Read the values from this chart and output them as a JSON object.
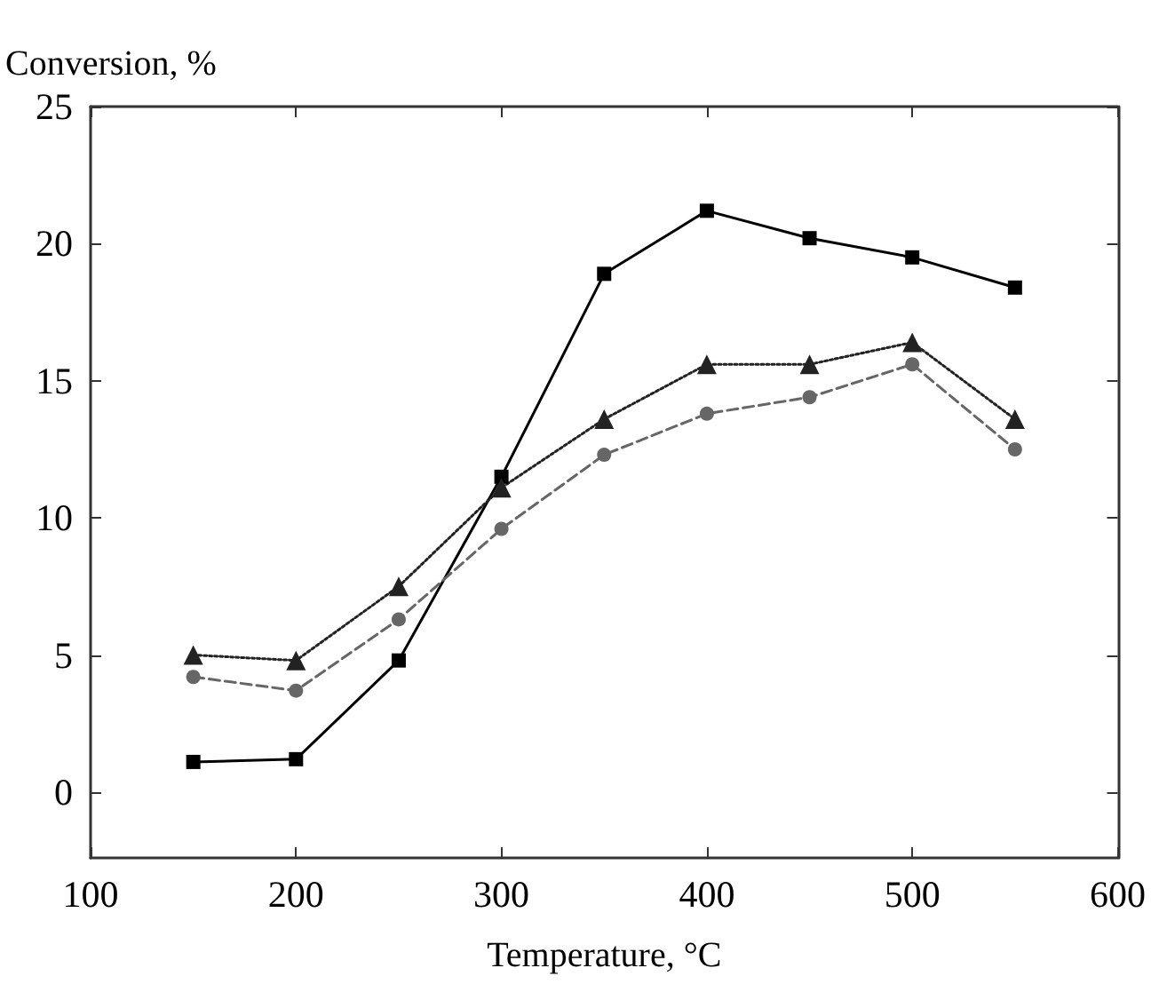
{
  "chart_data": {
    "type": "line",
    "xlabel": "Temperature, °C",
    "ylabel": "Conversion, %",
    "x": [
      150,
      200,
      250,
      300,
      350,
      400,
      450,
      500,
      550
    ],
    "series": [
      {
        "color": "#000000",
        "marker": "square",
        "line_style": "solid",
        "values": [
          1.1,
          1.2,
          4.8,
          11.5,
          18.9,
          21.2,
          20.2,
          19.5,
          18.4
        ]
      },
      {
        "color": "#222222",
        "marker": "triangle",
        "line_style": "dotted",
        "values": [
          5.0,
          4.8,
          7.5,
          11.1,
          13.6,
          15.6,
          15.6,
          16.4,
          13.6
        ]
      },
      {
        "color": "#666666",
        "marker": "circle",
        "line_style": "dashed",
        "values": [
          4.2,
          3.7,
          6.3,
          9.6,
          12.3,
          13.8,
          14.4,
          15.6,
          12.5
        ]
      }
    ],
    "xlim": [
      100,
      600
    ],
    "xticks": [
      100,
      200,
      300,
      400,
      500,
      600
    ],
    "ylim": [
      -2.4,
      25
    ],
    "yticks": [
      0,
      5,
      10,
      15,
      20,
      25
    ]
  }
}
